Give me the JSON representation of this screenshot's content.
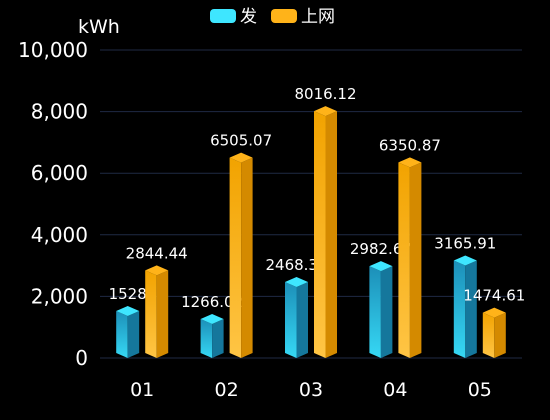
{
  "chart_data": {
    "type": "bar",
    "title": "",
    "xlabel": "",
    "ylabel": "kWh",
    "categories": [
      "01",
      "02",
      "03",
      "04",
      "05"
    ],
    "series": [
      {
        "name": "发",
        "values": [
          1528,
          1266.02,
          2468.39,
          2982.67,
          3165.91
        ],
        "labels": [
          "1528",
          "1266.02",
          "2468.39",
          "2982.67",
          "3165.91"
        ],
        "color_top": "#3ee6ff",
        "color_front_light": "#36d8f5",
        "color_front_dark": "#1c8fb8",
        "color_side": "#15779c"
      },
      {
        "name": "上网",
        "values": [
          2844.44,
          6505.07,
          8016.12,
          6350.87,
          1474.61
        ],
        "labels": [
          "2844.44",
          "6505.07",
          "8016.12",
          "6350.87",
          "1474.61"
        ],
        "color_top": "#ffb319",
        "color_front_light": "#ffc545",
        "color_front_dark": "#f2a300",
        "color_side": "#d48a00"
      }
    ],
    "ylim": [
      0,
      10000
    ],
    "yticks": [
      0,
      2000,
      4000,
      6000,
      8000,
      10000
    ],
    "ytick_labels": [
      "0",
      "2,000",
      "4,000",
      "6,000",
      "8,000",
      "10,000"
    ],
    "grid": true,
    "legend": "top-center",
    "colors": {
      "background": "#000000",
      "grid": "#1f2a44",
      "axis_text": "#ffffff",
      "label_text": "#ffffff"
    }
  }
}
